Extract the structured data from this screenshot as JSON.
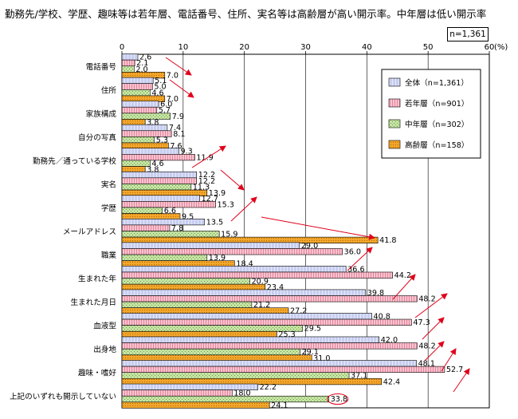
{
  "title": "勤務先/学校、学歴、趣味等は若年層、電話番号、住所、実名等は高齢層が高い開示率。中年層は低い開示率",
  "sample_note": "n=1,361",
  "chart_data": {
    "type": "bar",
    "orientation": "horizontal",
    "x_tick_labels": [
      "0",
      "10",
      "20",
      "30",
      "40",
      "50",
      "60"
    ],
    "unit": "(%)",
    "xlim": [
      0,
      60
    ],
    "legend_position": "top-right",
    "categories": [
      "電話番号",
      "住所",
      "家族構成",
      "自分の写真",
      "勤務先／通っている学校",
      "実名",
      "学歴",
      "メールアドレス",
      "職業",
      "生まれた年",
      "生まれた月日",
      "血液型",
      "出身地",
      "趣味・嗜好",
      "上記のいずれも開示していない"
    ],
    "series": [
      {
        "name": "全体（n=1,361）",
        "color": "#c8cef0",
        "values": [
          2.6,
          5.1,
          6.0,
          7.4,
          9.3,
          12.2,
          12.7,
          13.5,
          29.0,
          36.6,
          39.8,
          40.8,
          42.0,
          48.1,
          22.2
        ]
      },
      {
        "name": "若年層（n=901）",
        "color": "#f6c4d0",
        "values": [
          2.1,
          5.0,
          5.7,
          8.1,
          11.9,
          12.2,
          15.3,
          7.8,
          36.0,
          44.2,
          48.2,
          47.3,
          48.2,
          52.7,
          18.0
        ]
      },
      {
        "name": "中年層（n=302）",
        "color": "#c6e4a6",
        "values": [
          2.0,
          4.6,
          7.9,
          5.3,
          4.6,
          11.3,
          6.6,
          15.9,
          13.9,
          20.9,
          21.2,
          29.5,
          29.1,
          37.1,
          33.8
        ]
      },
      {
        "name": "高齢層（n=158）",
        "color": "#f2a62c",
        "values": [
          7.0,
          7.0,
          3.8,
          7.6,
          3.8,
          13.9,
          9.5,
          41.8,
          18.4,
          23.4,
          27.2,
          25.3,
          31.0,
          42.4,
          24.1
        ]
      }
    ],
    "highlighted_value": "33.8"
  }
}
